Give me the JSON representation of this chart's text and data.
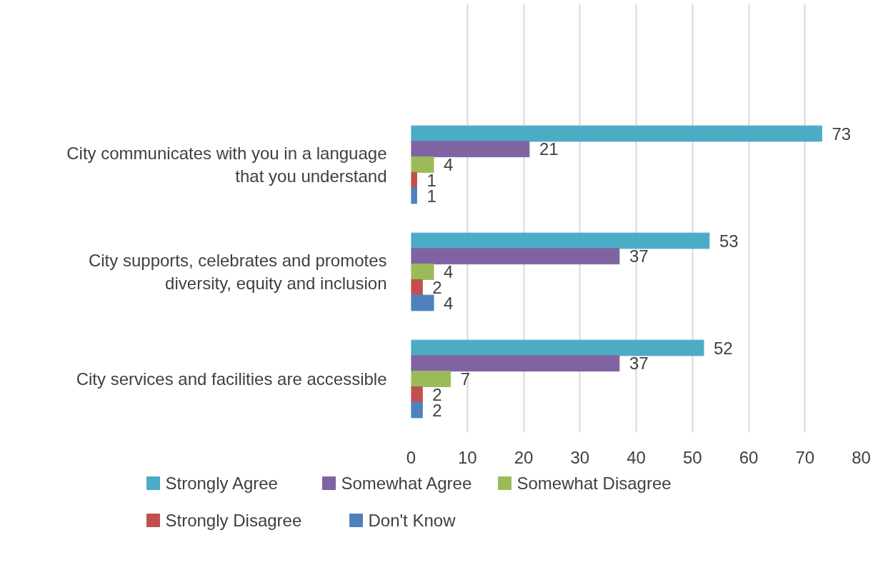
{
  "chart_data": {
    "type": "bar",
    "orientation": "horizontal",
    "categories": [
      null,
      "City communicates with you in a language that you understand",
      "City supports, celebrates and promotes diversity, equity and inclusion",
      "City services and facilities are accessible"
    ],
    "series": [
      {
        "name": "Strongly Agree",
        "color": "#4bacc6",
        "values": [
          null,
          73,
          53,
          52
        ]
      },
      {
        "name": "Somewhat Agree",
        "color": "#8064a2",
        "values": [
          null,
          21,
          37,
          37
        ]
      },
      {
        "name": "Somewhat Disagree",
        "color": "#9bbb59",
        "values": [
          null,
          4,
          4,
          7
        ]
      },
      {
        "name": "Strongly Disagree",
        "color": "#c0504d",
        "values": [
          null,
          1,
          2,
          2
        ]
      },
      {
        "name": "Don't Know",
        "color": "#4f81bd",
        "values": [
          null,
          1,
          4,
          2
        ]
      }
    ],
    "xlim": [
      0,
      80
    ],
    "xticks": [
      0,
      10,
      20,
      30,
      40,
      50,
      60,
      70,
      80
    ],
    "grid": "x",
    "legend": "bottom",
    "data_labels": true
  }
}
